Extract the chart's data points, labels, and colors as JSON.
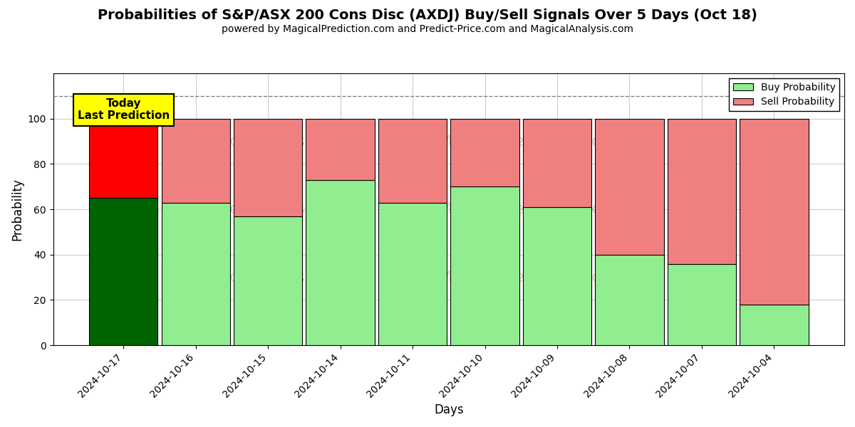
{
  "title": "Probabilities of S&P/ASX 200 Cons Disc (AXDJ) Buy/Sell Signals Over 5 Days (Oct 18)",
  "subtitle": "powered by MagicalPrediction.com and Predict-Price.com and MagicalAnalysis.com",
  "xlabel": "Days",
  "ylabel": "Probability",
  "categories": [
    "2024-10-17",
    "2024-10-16",
    "2024-10-15",
    "2024-10-14",
    "2024-10-11",
    "2024-10-10",
    "2024-10-09",
    "2024-10-08",
    "2024-10-07",
    "2024-10-04"
  ],
  "buy_values": [
    65,
    63,
    57,
    73,
    63,
    70,
    61,
    40,
    36,
    18
  ],
  "sell_values": [
    35,
    37,
    43,
    27,
    37,
    30,
    39,
    60,
    64,
    82
  ],
  "today_buy_color": "#006400",
  "today_sell_color": "#ff0000",
  "buy_color": "#90EE90",
  "sell_color": "#F08080",
  "today_annotation": "Today\nLast Prediction",
  "annotation_bg_color": "#ffff00",
  "dashed_line_y": 110,
  "ylim": [
    0,
    120
  ],
  "yticks": [
    0,
    20,
    40,
    60,
    80,
    100
  ],
  "grid_color": "#cccccc",
  "legend_buy_label": "Buy Probability",
  "legend_sell_label": "Sell Probability",
  "bar_width": 0.95,
  "title_fontsize": 14,
  "subtitle_fontsize": 10
}
